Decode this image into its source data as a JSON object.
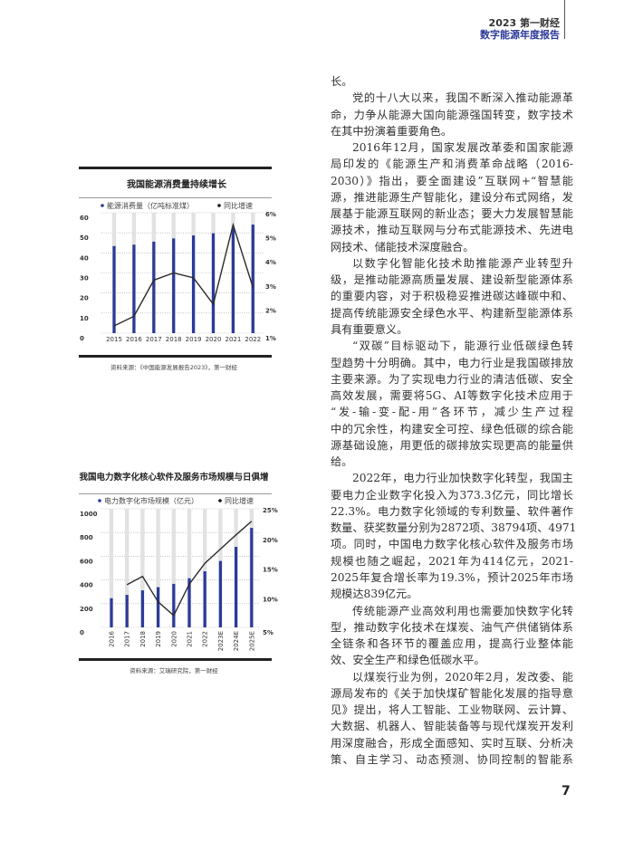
{
  "header": {
    "line1": "2023 第一财经",
    "line2": "数字能源年度报告"
  },
  "page_number": "7",
  "colors": {
    "bar": "#2b3a9a",
    "bar_bg": "#e2e2e2",
    "line": "#2a2a2a",
    "accent": "#2b3a9a"
  },
  "body": [
    {
      "indent": false,
      "lines": [
        "长。"
      ]
    },
    {
      "indent": true,
      "lines": [
        "党的十八大以来，我国不断深入推动能源革",
        "命，力争从能源大国向能源强国转变，数字技术",
        "在其中扮演着重要角色。"
      ]
    },
    {
      "indent": true,
      "lines": [
        "2016年12月，国家发展改革委和国家能源",
        "局印发的《能源生产和消费革命战略（2016-",
        "2030）》指出，要全面建设”互联网+“智慧能",
        "源，推进能源生产智能化，建设分布式网络，发",
        "展基于能源互联网的新业态；要大力发展智慧能",
        "源技术，推动互联网与分布式能源技术、先进电",
        "网技术、储能技术深度融合。"
      ]
    },
    {
      "indent": true,
      "lines": [
        "以数字化智能化技术助推能源产业转型升",
        "级，是推动能源高质量发展、建设新型能源体系",
        "的重要内容，对于积极稳妥推进碳达峰碳中和、",
        "提高传统能源安全绿色水平、构建新型能源体系",
        "具有重要意义。"
      ]
    },
    {
      "indent": true,
      "lines": [
        "“双碳”目标驱动下，能源行业低碳绿色转",
        "型趋势十分明确。其中，电力行业是我国碳排放",
        "主要来源。为了实现电力行业的清洁低碳、安全",
        "高效发展，需要将5G、AI等数字化技术应用于",
        "“发-输-变-配-用”各环节，减少生产过程",
        "中的冗余性，构建安全可控、绿色低碳的综合能",
        "源基础设施，用更低的碳排放实现更高的能量供",
        "给。"
      ]
    },
    {
      "indent": true,
      "lines": [
        "2022年，电力行业加快数字化转型，我国主",
        "要电力企业数字化投入为373.3亿元，同比增长",
        "22.3%。电力数字化领域的专利数量、软件著作",
        "数量、获奖数量分别为2872项、38794项、4971",
        "项。同时，中国电力数字化核心软件及服务市场",
        "规模也随之崛起，2021年为414亿元，2021-",
        "2025年复合增长率为19.3%，预计2025年市场",
        "规模达839亿元。"
      ]
    },
    {
      "indent": true,
      "lines": [
        "传统能源产业高效利用也需要加快数字化转",
        "型，推动数字化技术在煤炭、油气产供储销体系",
        "全链条和各环节的覆盖应用，提高行业整体能",
        "效、安全生产和绿色低碳水平。"
      ]
    },
    {
      "indent": true,
      "continues": true,
      "lines": [
        "以煤炭行业为例，2020年2月，发改委、能",
        "源局发布的《关于加快煤矿智能化发展的指导意",
        "见》提出，将人工智能、工业物联网、云计算、",
        "大数据、机器人、智能装备等与现代煤炭开发利",
        "用深度融合，形成全面感知、实时互联、分析决",
        "策、自主学习、动态预测、协同控制的智能系"
      ]
    }
  ],
  "chart_data": [
    {
      "type": "bar+line",
      "title": "我国能源消费量持续增长",
      "categories": [
        "2015",
        "2016",
        "2017",
        "2018",
        "2019",
        "2020",
        "2021",
        "2022"
      ],
      "series": [
        {
          "name": "能源消费量（亿吨标准煤）",
          "type": "bar",
          "axis": "left",
          "values": [
            43.4,
            44.1,
            45.6,
            47.2,
            48.7,
            49.8,
            52.4,
            54.1
          ]
        },
        {
          "name": "同比增速",
          "type": "line",
          "axis": "right",
          "values": [
            1.3,
            1.7,
            3.2,
            3.5,
            3.3,
            2.2,
            5.5,
            2.9
          ]
        }
      ],
      "left_axis": {
        "ylim": [
          0,
          60
        ],
        "ticks": [
          "0",
          "10",
          "20",
          "30",
          "40",
          "50",
          "60"
        ]
      },
      "right_axis": {
        "ylim": [
          1,
          6
        ],
        "ticks": [
          "1%",
          "2%",
          "3%",
          "4%",
          "5%",
          "6%"
        ]
      },
      "grid": true,
      "legend": "top",
      "source": "资料来源：《中国能源发展报告2023》，第一财经"
    },
    {
      "type": "bar+line",
      "title": "我国电力数字化核心软件及服务市场规模与日俱增",
      "categories": [
        "2016",
        "2017",
        "2018",
        "2019",
        "2020",
        "2021",
        "2022",
        "2023E",
        "2024E",
        "2025E"
      ],
      "series": [
        {
          "name": "电力数字化市场规模（亿元）",
          "type": "bar",
          "axis": "left",
          "values": [
            246,
            274,
            312,
            339,
            367,
            414,
            473,
            560,
            679,
            839
          ]
        },
        {
          "name": "同比增速",
          "type": "line",
          "axis": "right",
          "values": [
            null,
            12.2,
            13.6,
            9.3,
            7.0,
            12.3,
            15.8,
            18.2,
            20.6,
            22.9
          ]
        }
      ],
      "left_axis": {
        "ylim": [
          0,
          1000
        ],
        "ticks": [
          "0",
          "200",
          "400",
          "600",
          "800",
          "1000"
        ]
      },
      "right_axis": {
        "ylim": [
          5,
          25
        ],
        "ticks": [
          "5%",
          "10%",
          "15%",
          "20%",
          "25%"
        ]
      },
      "grid": true,
      "legend": "top",
      "source": "资料来源：艾瑞研究院，第一财经"
    }
  ]
}
